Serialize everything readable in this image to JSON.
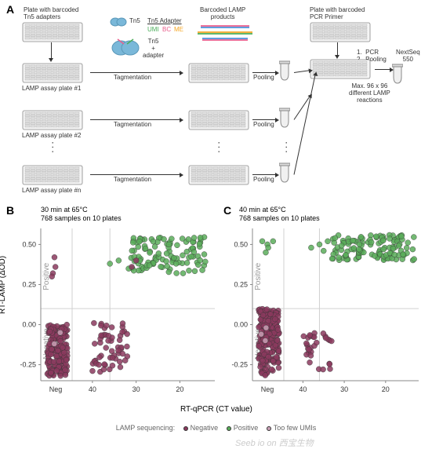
{
  "panelA": {
    "label": "A",
    "texts": {
      "plate_barcoded_tn5": "Plate with barcoded\nTn5 adapters",
      "tn5": "Tn5",
      "tn5_adapter": "Tn5 Adapter",
      "umi": "UMI",
      "bc": "BC",
      "me": "ME",
      "tn5_plus_adapter": "Tn5\n+\nadapter",
      "barcoded_lamp": "Barcoded LAMP\nproducts",
      "plate_pcr": "Plate with barcoded\nPCR Primer",
      "pcr_steps": "1.  PCR\n2.  Pooling",
      "nextseq": "NextSeq\n550",
      "max_lamp": "Max. 96 x 96\ndifferent LAMP\nreactions",
      "tagmentation": "Tagmentation",
      "pooling": "Pooling",
      "lamp_plate_1": "LAMP assay plate #1",
      "lamp_plate_2": "LAMP assay plate #2",
      "lamp_plate_n": "LAMP assay plate #n"
    },
    "adapter_colors": [
      "#e85d8c",
      "#4aa d5a",
      "#f5a623",
      "#4a90d9"
    ],
    "umi_color": "#4aad5a",
    "bc_color": "#e85d8c",
    "me_color": "#f5a623",
    "tn5_color": "#7ab8d9"
  },
  "panelB": {
    "label": "B",
    "title_line1": "30 min at 65°C",
    "title_line2": "768 samples on 10 plates",
    "chart": {
      "type": "scatter",
      "xlim": [
        45,
        12
      ],
      "ylim": [
        -0.35,
        0.6
      ],
      "ytick_values": [
        -0.25,
        0.0,
        0.25,
        0.5
      ],
      "xtick_values": [
        40,
        30,
        20
      ],
      "xtick_neg": "Neg",
      "vgrid_x": 36,
      "hgrid_y": 0.1,
      "pos_label": "Positive",
      "neg_label": "Negative",
      "bg": "#ffffff",
      "colors": {
        "negative": "#8b3a5e",
        "positive": "#5aad5a",
        "toolow": "#c9a0b5"
      },
      "point_size": 3.5,
      "point_stroke": "#333333",
      "neg_cluster": {
        "x_range": [
          47,
          43.5
        ],
        "n": 180,
        "y_neg": [
          -0.32,
          0.0
        ],
        "n_neg_ratio": 0.9,
        "y_pos_outliers": [
          [
            0.36
          ],
          [
            0.32
          ],
          [
            0.3
          ],
          [
            0.42
          ]
        ],
        "pink_outliers": [
          [
            45.5,
            -0.05
          ],
          [
            44.5,
            -0.12
          ]
        ]
      },
      "mid_cluster": {
        "x_range": [
          40,
          32
        ],
        "n": 55,
        "y_range": [
          -0.3,
          0.02
        ],
        "color": "negative",
        "greens": [
          [
            36,
            0.38
          ],
          [
            34,
            0.4
          ]
        ]
      },
      "right_cluster": {
        "x_range": [
          32,
          14
        ],
        "n": 110,
        "y_range": [
          0.32,
          0.55
        ],
        "color": "positive",
        "purples": [
          [
            31,
            0.36
          ],
          [
            30,
            0.4
          ]
        ]
      }
    }
  },
  "panelC": {
    "label": "C",
    "title_line1": "40 min at 65°C",
    "title_line2": "768 samples on 10 plates",
    "chart": {
      "type": "scatter",
      "xlim": [
        45,
        12
      ],
      "ylim": [
        -0.35,
        0.6
      ],
      "ytick_values": [
        -0.25,
        0.0,
        0.25,
        0.5
      ],
      "xtick_values": [
        40,
        30,
        20
      ],
      "xtick_neg": "Neg",
      "vgrid_x": 36,
      "hgrid_y": 0.1,
      "pos_label": "Positive",
      "neg_label": "Negative",
      "colors": {
        "negative": "#8b3a5e",
        "positive": "#5aad5a",
        "toolow": "#c9a0b5"
      },
      "point_size": 3.5,
      "neg_cluster": {
        "x_range": [
          47,
          43.5
        ],
        "n": 200,
        "y_range": [
          -0.32,
          0.1
        ],
        "greens": [
          [
            45,
            0.5
          ],
          [
            45.5,
            0.52
          ],
          [
            44.2,
            0.48
          ],
          [
            46,
            0.45
          ],
          [
            44.8,
            0.52
          ]
        ],
        "pinks": [
          [
            45,
            -0.02
          ],
          [
            44,
            -0.1
          ],
          [
            46,
            -0.06
          ]
        ]
      },
      "mid_cluster": {
        "x_range": [
          40,
          33
        ],
        "n": 30,
        "y_range": [
          -0.28,
          -0.05
        ],
        "color": "negative",
        "greens": [
          [
            38,
            0.48
          ],
          [
            36,
            0.5
          ],
          [
            35,
            0.46
          ],
          [
            34,
            0.52
          ]
        ]
      },
      "right_cluster": {
        "x_range": [
          33,
          13
        ],
        "n": 120,
        "y_range": [
          0.4,
          0.56
        ],
        "color": "positive"
      }
    }
  },
  "shared_axes": {
    "ylabel": "RT-LAMP (ΔOD)",
    "xlabel": "RT-qPCR (CT value)"
  },
  "legend": {
    "title": "LAMP sequencing:",
    "items": [
      {
        "label": "Negative",
        "color": "#8b3a5e"
      },
      {
        "label": "Positive",
        "color": "#5aad5a"
      },
      {
        "label": "Too few UMIs",
        "color": "#c9a0b5"
      }
    ]
  },
  "watermark": "Seeb io on 西宝生物"
}
